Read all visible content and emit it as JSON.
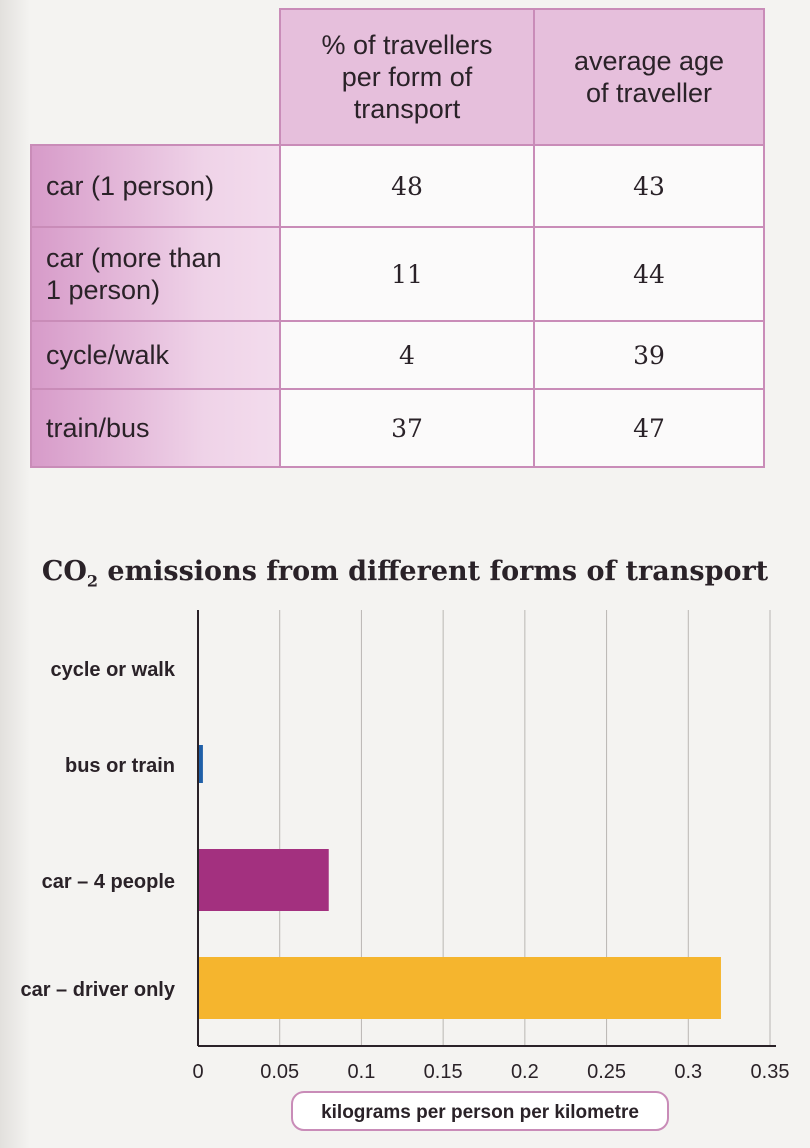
{
  "table": {
    "headers": [
      "% of travellers per form of transport",
      "average age of traveller"
    ],
    "header_lines": [
      [
        "% of travellers",
        "per form of",
        "transport"
      ],
      [
        "average age",
        "of traveller"
      ]
    ],
    "rows": [
      {
        "label_lines": [
          "car (1 person)"
        ],
        "percent": "48",
        "age": "43"
      },
      {
        "label_lines": [
          "car (more than",
          "1 person)"
        ],
        "percent": "11",
        "age": "44"
      },
      {
        "label_lines": [
          "cycle/walk"
        ],
        "percent": "4",
        "age": "39"
      },
      {
        "label_lines": [
          "train/bus"
        ],
        "percent": "37",
        "age": "47"
      }
    ],
    "colors": {
      "header_bg": "#e6bfdc",
      "row_label_bg": "#d79bc9",
      "border": "#c98cb8"
    }
  },
  "chart_data": {
    "type": "bar",
    "orientation": "horizontal",
    "title_main": "CO",
    "title_sub": "2",
    "title_rest": " emissions from different forms of transport",
    "categories": [
      "cycle or walk",
      "bus or train",
      "car – 4 people",
      "car – driver only"
    ],
    "values": [
      0,
      0.003,
      0.08,
      0.32
    ],
    "colors": [
      "#1f5fa8",
      "#1f5fa8",
      "#a3307f",
      "#f5b52e"
    ],
    "xlabel": "kilograms per person per kilometre",
    "ylabel": "",
    "xlim": [
      0,
      0.35
    ],
    "xticks": [
      0,
      0.05,
      0.1,
      0.15,
      0.2,
      0.25,
      0.3,
      0.35
    ],
    "xtick_labels": [
      "0",
      "0.05",
      "0.1",
      "0.15",
      "0.2",
      "0.25",
      "0.3",
      "0.35"
    ],
    "grid": true
  }
}
